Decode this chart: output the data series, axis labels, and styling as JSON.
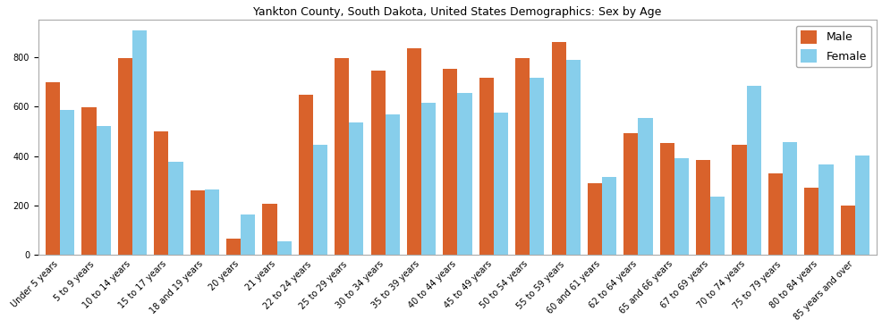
{
  "title": "Yankton County, South Dakota, United States Demographics: Sex by Age",
  "categories": [
    "Under 5 years",
    "5 to 9 years",
    "10 to 14 years",
    "15 to 17 years",
    "18 and 19 years",
    "20 years",
    "21 years",
    "22 to 24 years",
    "25 to 29 years",
    "30 to 34 years",
    "35 to 39 years",
    "40 to 44 years",
    "45 to 49 years",
    "50 to 54 years",
    "55 to 59 years",
    "60 and 61 years",
    "62 to 64 years",
    "65 and 66 years",
    "67 to 69 years",
    "70 to 74 years",
    "75 to 79 years",
    "80 to 84 years",
    "85 years and over"
  ],
  "male": [
    700,
    597,
    797,
    499,
    262,
    68,
    207,
    648,
    797,
    747,
    835,
    752,
    717,
    797,
    862,
    290,
    493,
    454,
    386,
    447,
    332,
    272,
    200
  ],
  "female": [
    587,
    521,
    908,
    378,
    265,
    165,
    57,
    447,
    538,
    570,
    617,
    655,
    575,
    716,
    789,
    315,
    554,
    393,
    237,
    685,
    457,
    365,
    401
  ],
  "male_color": "#d9622b",
  "female_color": "#87ceeb",
  "male_label": "Male",
  "female_label": "Female",
  "ylim": [
    0,
    950
  ],
  "yticks": [
    0,
    200,
    400,
    600,
    800
  ],
  "bar_width": 0.4,
  "figsize": [
    9.87,
    3.67
  ],
  "dpi": 100,
  "title_fontsize": 9,
  "tick_fontsize": 7,
  "legend_fontsize": 9
}
